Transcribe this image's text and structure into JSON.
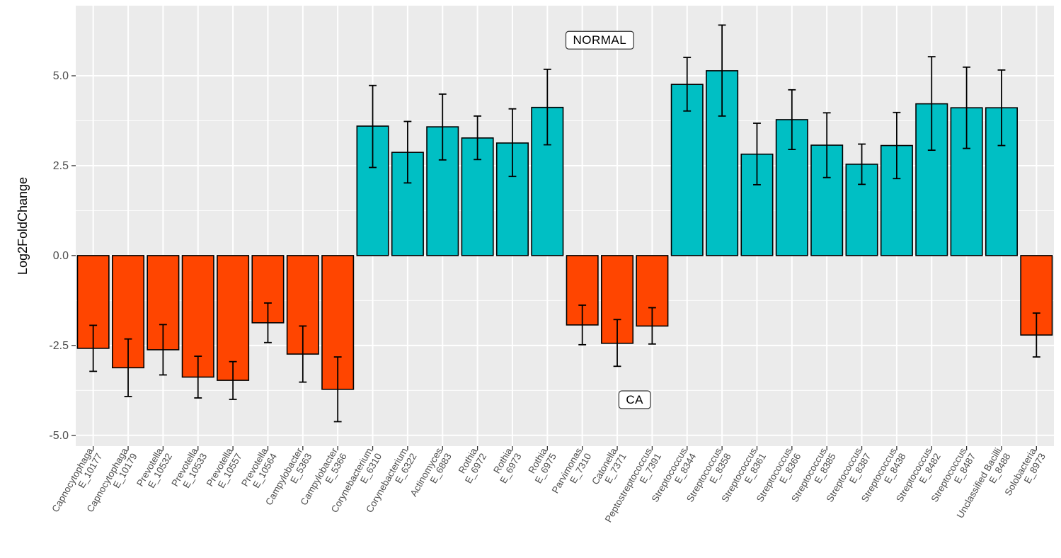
{
  "chart_data": {
    "type": "bar",
    "title": "",
    "xlabel": "",
    "ylabel": "Log2FoldChange",
    "ylim": [
      -5.3,
      6.95
    ],
    "yticks": [
      -5.0,
      -2.5,
      0.0,
      2.5,
      5.0
    ],
    "ytick_labels": [
      "-5.0",
      "-2.5",
      "0.0",
      "2.5",
      "5.0"
    ],
    "grid": true,
    "legend": "none",
    "colors": {
      "negative": "#ff4500",
      "positive": "#00bfc4",
      "panel": "#ebebeb",
      "grid": "#ffffff",
      "errorbar": "#000000"
    },
    "categories": [
      {
        "genus": "Capnocytophaga",
        "id": "E_10177"
      },
      {
        "genus": "Capnocytophaga",
        "id": "E_10179"
      },
      {
        "genus": "Prevotella",
        "id": "E_10532"
      },
      {
        "genus": "Prevotella",
        "id": "E_10533"
      },
      {
        "genus": "Prevotella",
        "id": "E_10557"
      },
      {
        "genus": "Prevotella",
        "id": "E_10564"
      },
      {
        "genus": "Campylobacter",
        "id": "E_5363"
      },
      {
        "genus": "Campylobacter",
        "id": "E_5366"
      },
      {
        "genus": "Corynebacterium",
        "id": "E_6310"
      },
      {
        "genus": "Corynebacterium",
        "id": "E_6322"
      },
      {
        "genus": "Actinomyces",
        "id": "E_6883"
      },
      {
        "genus": "Rothia",
        "id": "E_6972"
      },
      {
        "genus": "Rothia",
        "id": "E_6973"
      },
      {
        "genus": "Rothia",
        "id": "E_6975"
      },
      {
        "genus": "Parvimonas",
        "id": "E_7310"
      },
      {
        "genus": "Catonella",
        "id": "E_7371"
      },
      {
        "genus": "Peptostreptococcus",
        "id": "E_7391"
      },
      {
        "genus": "Streptococcus",
        "id": "E_8344"
      },
      {
        "genus": "Streptococcus",
        "id": "E_8358"
      },
      {
        "genus": "Streptococcus",
        "id": "E_8361"
      },
      {
        "genus": "Streptococcus",
        "id": "E_8366"
      },
      {
        "genus": "Streptococcus",
        "id": "E_8385"
      },
      {
        "genus": "Streptococcus",
        "id": "E_8387"
      },
      {
        "genus": "Streptococcus",
        "id": "E_8438"
      },
      {
        "genus": "Streptococcus",
        "id": "E_8482"
      },
      {
        "genus": "Streptococcus",
        "id": "E_8487"
      },
      {
        "genus": "Unclassified Bacilli",
        "id": "E_8488"
      },
      {
        "genus": "Solobacteria",
        "id": "E_8973"
      }
    ],
    "values": [
      -2.58,
      -3.12,
      -2.62,
      -3.38,
      -3.47,
      -1.87,
      -2.74,
      -3.72,
      3.6,
      2.87,
      3.58,
      3.27,
      3.13,
      4.12,
      -1.93,
      -2.44,
      -1.96,
      4.76,
      5.14,
      2.82,
      3.78,
      3.07,
      2.54,
      3.06,
      4.22,
      4.11,
      4.11,
      -2.21
    ],
    "error_low": [
      -3.22,
      -3.92,
      -3.32,
      -3.96,
      -4.0,
      -2.42,
      -3.52,
      -4.62,
      2.45,
      2.02,
      2.66,
      2.67,
      2.2,
      3.08,
      -2.48,
      -3.08,
      -2.46,
      4.02,
      3.88,
      1.97,
      2.95,
      2.17,
      1.98,
      2.14,
      2.93,
      2.98,
      3.06,
      -2.82
    ],
    "error_high": [
      -1.94,
      -2.32,
      -1.92,
      -2.8,
      -2.95,
      -1.32,
      -1.96,
      -2.82,
      4.73,
      3.73,
      4.49,
      3.88,
      4.08,
      5.18,
      -1.38,
      -1.78,
      -1.45,
      5.51,
      6.41,
      3.68,
      4.61,
      3.97,
      3.1,
      3.98,
      5.53,
      5.24,
      5.16,
      -1.6
    ],
    "annotations": [
      {
        "text": "NORMAL",
        "x_between": [
          14,
          15
        ],
        "y": 6.0
      },
      {
        "text": "CA",
        "x_between": [
          15,
          16
        ],
        "y": -4.0
      }
    ]
  }
}
